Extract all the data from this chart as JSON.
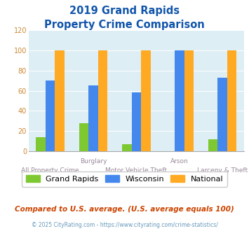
{
  "title_line1": "2019 Grand Rapids",
  "title_line2": "Property Crime Comparison",
  "categories": [
    "All Property Crime",
    "Burglary",
    "Motor Vehicle Theft",
    "Arson",
    "Larceny & Theft"
  ],
  "grand_rapids": [
    14,
    28,
    7,
    0,
    12
  ],
  "wisconsin": [
    70,
    65,
    58,
    100,
    73
  ],
  "national": [
    100,
    100,
    100,
    100,
    100
  ],
  "colors": {
    "grand_rapids": "#7ec832",
    "wisconsin": "#4488ee",
    "national": "#ffaa22"
  },
  "ylim": [
    0,
    120
  ],
  "yticks": [
    0,
    20,
    40,
    60,
    80,
    100,
    120
  ],
  "background_color": "#ddeef5",
  "title_color": "#1155aa",
  "ytick_label_color": "#cc8833",
  "xtick_label_color": "#998899",
  "note_text": "Compared to U.S. average. (U.S. average equals 100)",
  "note_color": "#cc4400",
  "footer_text": "© 2025 CityRating.com - https://www.cityrating.com/crime-statistics/",
  "footer_color": "#6699bb",
  "legend_labels": [
    "Grand Rapids",
    "Wisconsin",
    "National"
  ],
  "bar_width": 0.22,
  "cat_labels_top": [
    "",
    "Burglary",
    "",
    "Arson",
    ""
  ],
  "cat_labels_bot": [
    "All Property Crime",
    "",
    "Motor Vehicle Theft",
    "",
    "Larceny & Theft"
  ]
}
